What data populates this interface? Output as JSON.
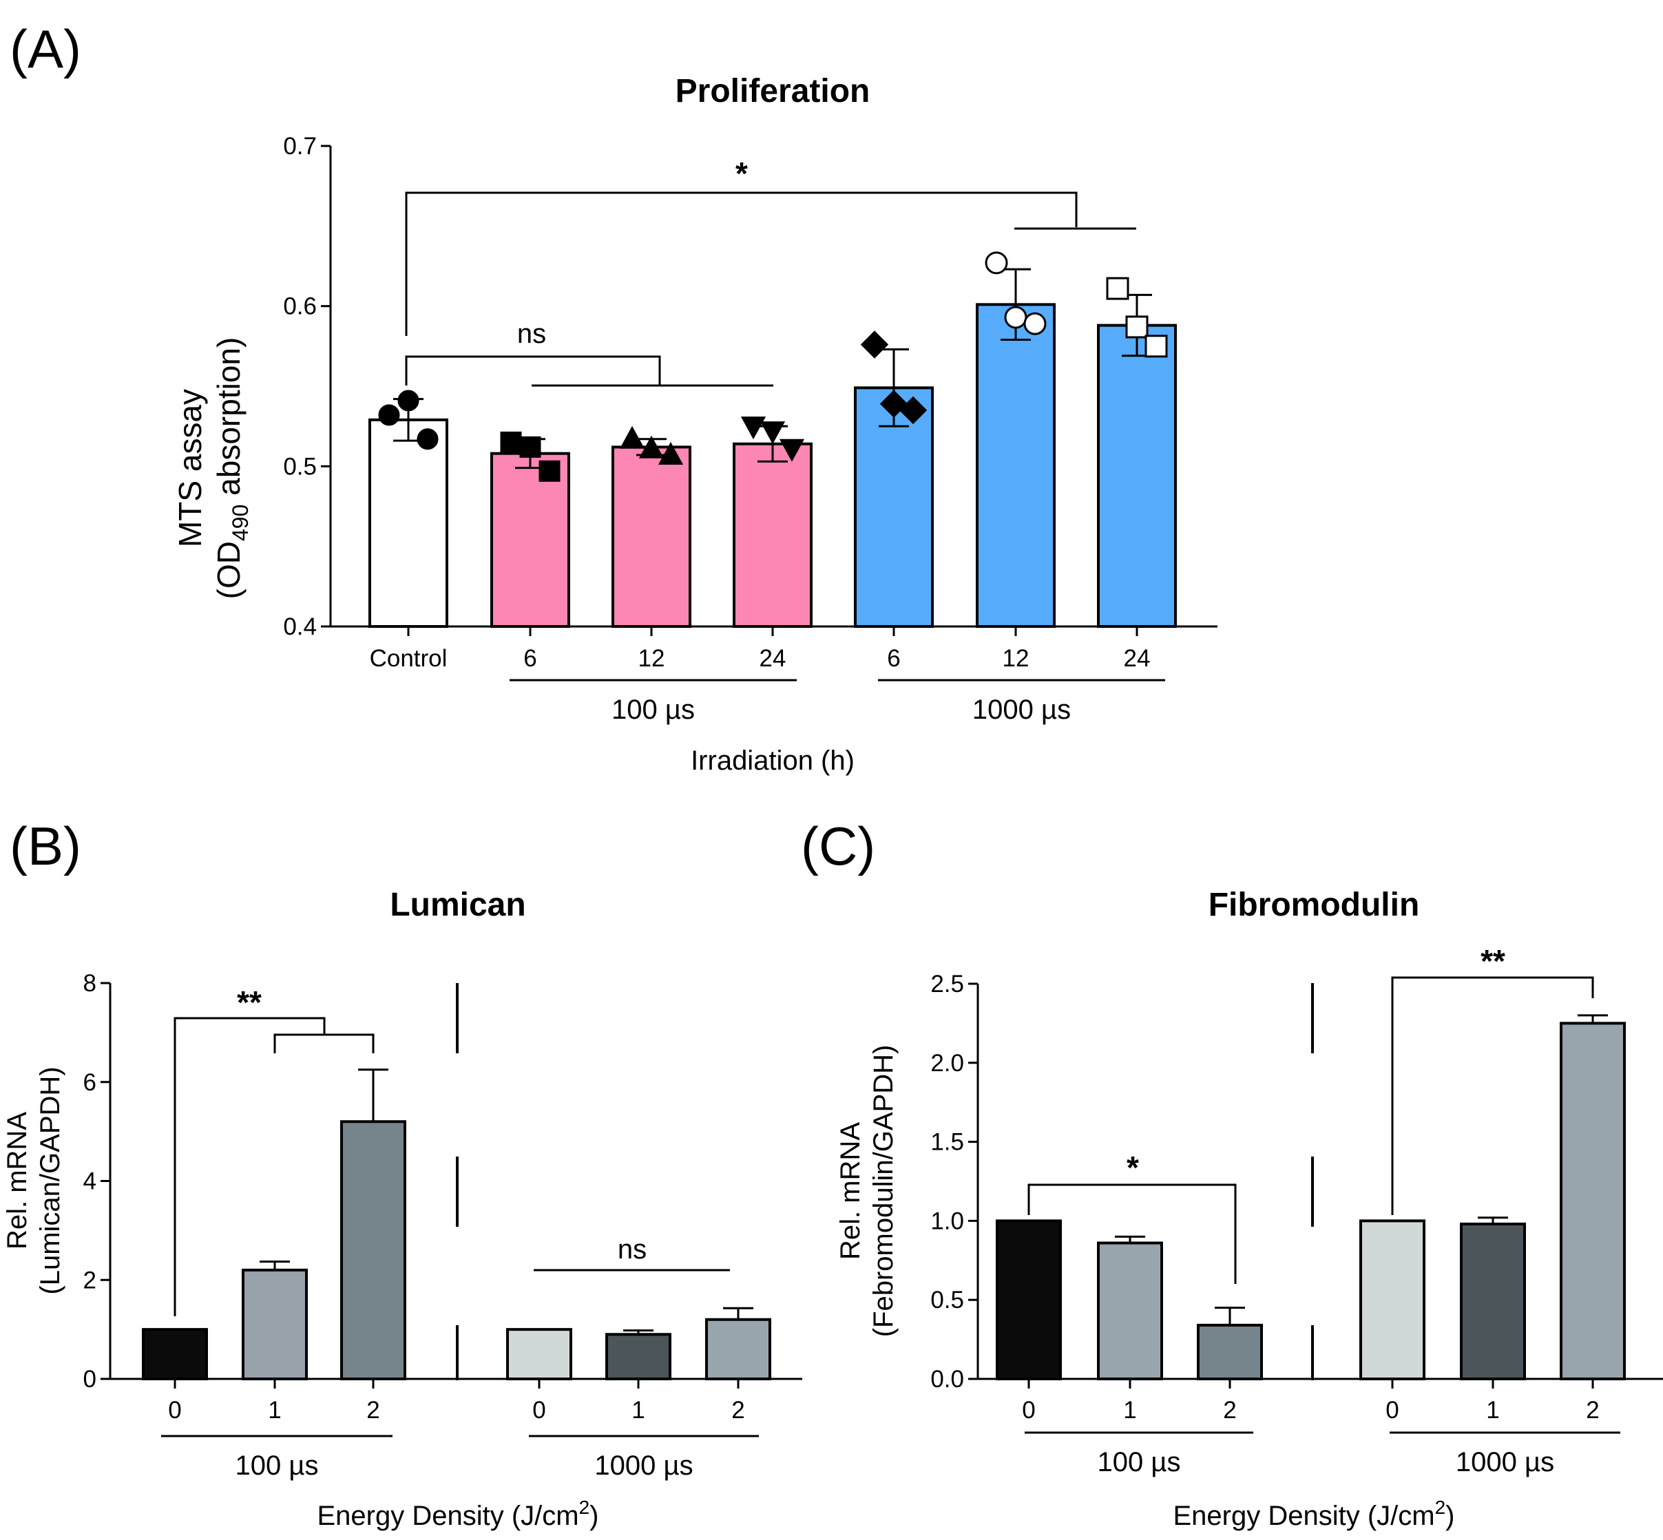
{
  "panels": [
    {
      "label": "(A)"
    },
    {
      "label": "(B)"
    },
    {
      "label": "(C)"
    }
  ],
  "chart_data": [
    {
      "type": "bar",
      "title": "Proliferation",
      "ylabel_line1": "MTS assay",
      "ylabel_line2_pre": "(OD",
      "ylabel_line2_sub": "490",
      "ylabel_line2_post": " absorption)",
      "xlabel": "Irradiation (h)",
      "ylim": [
        0.4,
        0.7
      ],
      "yticks": [
        "0.4",
        "0.5",
        "0.6",
        "0.7"
      ],
      "categories": [
        "Control",
        "6",
        "12",
        "24",
        "6",
        "12",
        "24"
      ],
      "values": [
        0.529,
        0.508,
        0.512,
        0.514,
        0.549,
        0.601,
        0.588
      ],
      "error": [
        0.013,
        0.009,
        0.005,
        0.011,
        0.024,
        0.022,
        0.019
      ],
      "points": [
        [
          0.532,
          0.541,
          0.517
        ],
        [
          0.515,
          0.512,
          0.497
        ],
        [
          0.517,
          0.511,
          0.507
        ],
        [
          0.525,
          0.522,
          0.511
        ],
        [
          0.576,
          0.539,
          0.535
        ],
        [
          0.627,
          0.593,
          0.589
        ],
        [
          0.611,
          0.587,
          0.575
        ]
      ],
      "markers": [
        "circle",
        "square",
        "triangle",
        "triangle-down",
        "diamond",
        "circle-open",
        "square-open"
      ],
      "colors": [
        "#ffffff",
        "#fc86b4",
        "#fc86b4",
        "#fc86b4",
        "#56acfb",
        "#56acfb",
        "#56acfb"
      ],
      "groups": [
        {
          "label": "100 µs",
          "from": 1,
          "to": 3
        },
        {
          "label": "1000 µs",
          "from": 4,
          "to": 6
        }
      ],
      "annotations": [
        "*",
        "ns"
      ]
    },
    {
      "type": "bar",
      "title": "Lumican",
      "ylabel_line1": "Rel. mRNA",
      "ylabel_line2": "(Lumican/GAPDH)",
      "xlabel_pre": "Energy Density (J/cm",
      "xlabel_sup": "2",
      "xlabel_post": ")",
      "ylim": [
        0,
        8
      ],
      "yticks": [
        "0",
        "2",
        "4",
        "6",
        "8"
      ],
      "categories": [
        "0",
        "1",
        "2",
        "0",
        "1",
        "2"
      ],
      "values": [
        1.0,
        2.2,
        5.2,
        1.0,
        0.9,
        1.2
      ],
      "error": [
        0,
        0.17,
        1.05,
        0,
        0.08,
        0.23
      ],
      "colors": [
        "#0b0b0b",
        "#98a2aa",
        "#76858c",
        "#d1d9d8",
        "#4c5559",
        "#98a5ad"
      ],
      "groups": [
        {
          "label": "100 µs",
          "from": 0,
          "to": 2
        },
        {
          "label": "1000 µs",
          "from": 3,
          "to": 5
        }
      ],
      "annotations": [
        "**",
        "ns"
      ]
    },
    {
      "type": "bar",
      "title": "Fibromodulin",
      "ylabel_line1": "Rel. mRNA",
      "ylabel_line2": "(Febromodulin/GAPDH)",
      "xlabel_pre": "Energy Density (J/cm",
      "xlabel_sup": "2",
      "xlabel_post": ")",
      "ylim": [
        0,
        2.5
      ],
      "yticks": [
        "0.0",
        "0.5",
        "1.0",
        "1.5",
        "2.0",
        "2.5"
      ],
      "categories": [
        "0",
        "1",
        "2",
        "0",
        "1",
        "2"
      ],
      "values": [
        1.0,
        0.86,
        0.34,
        1.0,
        0.98,
        2.25
      ],
      "error": [
        0,
        0.04,
        0.11,
        0,
        0.04,
        0.05
      ],
      "colors": [
        "#0b0b0b",
        "#98a5ad",
        "#76858c",
        "#d1d9d8",
        "#4c5559",
        "#98a5ad"
      ],
      "groups": [
        {
          "label": "100 µs",
          "from": 0,
          "to": 2
        },
        {
          "label": "1000 µs",
          "from": 3,
          "to": 5
        }
      ],
      "annotations": [
        "*",
        "**"
      ]
    }
  ]
}
